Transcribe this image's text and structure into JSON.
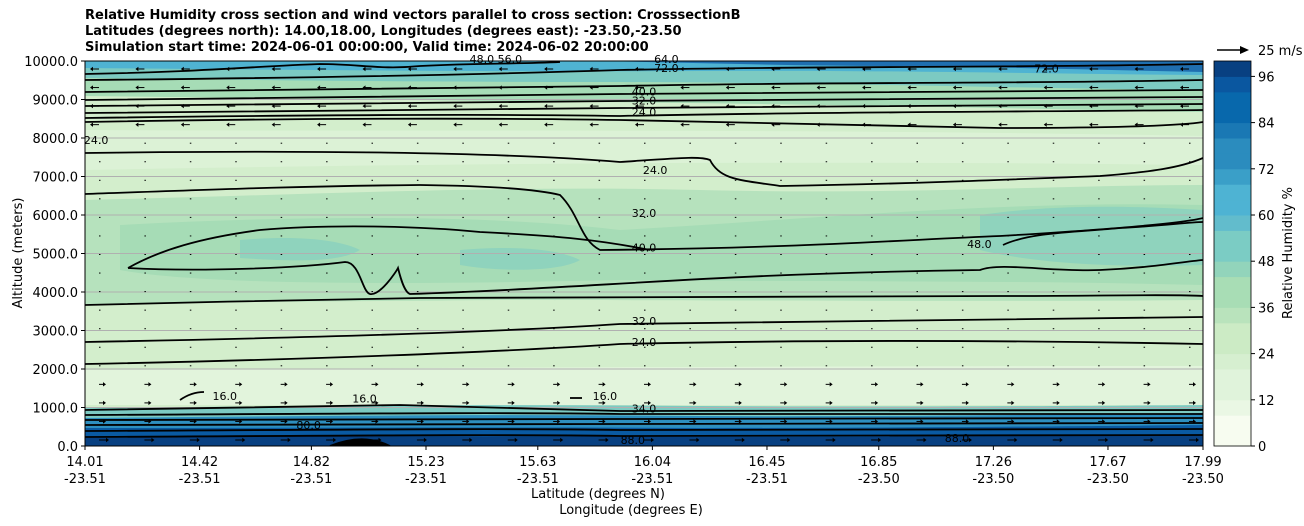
{
  "title": {
    "line1": "Relative Humidity cross section and wind vectors parallel to cross section: CrosssectionB",
    "line2": "Latitudes (degrees north): 14.00,18.00, Longitudes (degrees east): -23.50,-23.50",
    "line3": "Simulation start time: 2024-06-01 00:00:00, Valid time: 2024-06-02 20:00:00"
  },
  "chart_data": {
    "type": "heatmap",
    "description_kind": "filled contour with line contours and wind vectors",
    "ylabel": "Altitude (meters)",
    "xlabel_lat": "Latitude (degrees N)",
    "xlabel_lon": "Longitude (degrees E)",
    "ylim": [
      0,
      10000
    ],
    "y_ticks": [
      "0.0",
      "1000.0",
      "2000.0",
      "3000.0",
      "4000.0",
      "5000.0",
      "6000.0",
      "7000.0",
      "8000.0",
      "9000.0",
      "10000.0"
    ],
    "y_tick_values": [
      0,
      1000,
      2000,
      3000,
      4000,
      5000,
      6000,
      7000,
      8000,
      9000,
      10000
    ],
    "x_ticks": [
      {
        "lat": "14.01",
        "lon": "-23.51",
        "pos": 0.0
      },
      {
        "lat": "14.42",
        "lon": "-23.51",
        "pos": 0.1025
      },
      {
        "lat": "14.82",
        "lon": "-23.51",
        "pos": 0.2025
      },
      {
        "lat": "15.23",
        "lon": "-23.51",
        "pos": 0.305
      },
      {
        "lat": "15.63",
        "lon": "-23.51",
        "pos": 0.405
      },
      {
        "lat": "16.04",
        "lon": "-23.51",
        "pos": 0.5075
      },
      {
        "lat": "16.45",
        "lon": "-23.51",
        "pos": 0.61
      },
      {
        "lat": "16.85",
        "lon": "-23.50",
        "pos": 0.71
      },
      {
        "lat": "17.26",
        "lon": "-23.50",
        "pos": 0.8125
      },
      {
        "lat": "17.67",
        "lon": "-23.50",
        "pos": 0.915
      },
      {
        "lat": "17.99",
        "lon": "-23.50",
        "pos": 1.0
      }
    ],
    "grid": "horizontal",
    "colorbar": {
      "label": "Relative Humidity %",
      "range": [
        0,
        100
      ],
      "ticks": [
        "0",
        "12",
        "24",
        "36",
        "48",
        "60",
        "72",
        "84",
        "96"
      ],
      "tick_values": [
        0,
        12,
        24,
        36,
        48,
        60,
        72,
        84,
        96
      ],
      "levels": [
        0,
        4,
        8,
        12,
        16,
        20,
        24,
        28,
        32,
        36,
        40,
        44,
        48,
        52,
        56,
        60,
        64,
        68,
        72,
        76,
        80,
        84,
        88,
        92,
        96,
        100
      ]
    },
    "quiver_key": "25 m/s",
    "contour_labels": [
      {
        "text": "24.0",
        "x": 0.01,
        "alt": 7900
      },
      {
        "text": "24.0",
        "x": 0.51,
        "alt": 7120
      },
      {
        "text": "32.0",
        "x": 0.5,
        "alt": 6000
      },
      {
        "text": "40.0",
        "x": 0.5,
        "alt": 5100
      },
      {
        "text": "48.0",
        "x": 0.8,
        "alt": 5200
      },
      {
        "text": "32.0",
        "x": 0.5,
        "alt": 3200
      },
      {
        "text": "24.0",
        "x": 0.5,
        "alt": 2650
      },
      {
        "text": "24.0",
        "x": 0.5,
        "alt": 8620
      },
      {
        "text": "32.0",
        "x": 0.5,
        "alt": 8920
      },
      {
        "text": "40.0",
        "x": 0.5,
        "alt": 9160
      },
      {
        "text": "16.0",
        "x": 0.25,
        "alt": 1180
      },
      {
        "text": "16.0",
        "x": 0.125,
        "alt": 1250
      },
      {
        "text": "16.0",
        "x": 0.465,
        "alt": 1250
      },
      {
        "text": "72.0",
        "x": 0.52,
        "alt": 9760
      },
      {
        "text": "64.0",
        "x": 0.52,
        "alt": 10000
      },
      {
        "text": "48.0",
        "x": 0.355,
        "alt": 10000
      },
      {
        "text": "56.0",
        "x": 0.38,
        "alt": 10000
      },
      {
        "text": "72.0",
        "x": 0.86,
        "alt": 9750
      },
      {
        "text": "88.0",
        "x": 0.49,
        "alt": 100
      },
      {
        "text": "80.0",
        "x": 0.2,
        "alt": 500
      },
      {
        "text": "88.0",
        "x": 0.78,
        "alt": 150
      },
      {
        "text": "34.0",
        "x": 0.5,
        "alt": 920
      }
    ]
  },
  "colors": {
    "rh_scale": [
      "#f7fcf0",
      "#eaf7e4",
      "#e0f3db",
      "#d6efd0",
      "#ccebc5",
      "#b9e3bc",
      "#a8ddb5",
      "#92d4bb",
      "#7bccc4",
      "#62bccc",
      "#4eb3d3",
      "#3a9fc8",
      "#2b8cbe",
      "#1a78b4",
      "#0868ac",
      "#0a57a0",
      "#084081"
    ],
    "grid": "#b0b0b0",
    "contour": "#000000"
  }
}
